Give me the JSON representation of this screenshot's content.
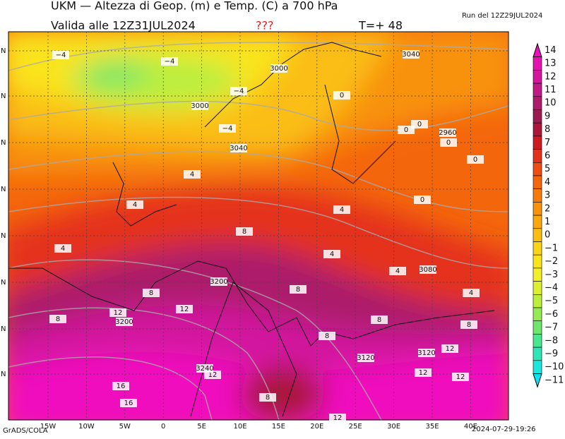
{
  "header": {
    "title": "UKM — Altezza di Geop. (m) e Temp. (C) a 700 hPa",
    "valid": "Valida alle 12Z31JUL2024",
    "note": "???",
    "step": "T=+ 48",
    "run": "Run del 12Z29JUL2024"
  },
  "map": {
    "lon_labels": [
      "15W",
      "10W",
      "5W",
      "0",
      "5E",
      "10E",
      "15E",
      "20E",
      "25E",
      "30E",
      "35E",
      "40E"
    ],
    "lat_labels": [
      "N",
      "N",
      "N",
      "N",
      "N",
      "N",
      "N",
      "N"
    ],
    "contour_labels": [
      "−4",
      "−4",
      "−4",
      "−4",
      "3000",
      "3000",
      "3040",
      "3040",
      "0",
      "0",
      "0",
      "0",
      "0",
      "0",
      "2960",
      "4",
      "4",
      "4",
      "4",
      "4",
      "4",
      "4",
      "8",
      "8",
      "8",
      "8",
      "8",
      "8",
      "8",
      "3200",
      "3200",
      "12",
      "12",
      "12",
      "12",
      "12",
      "12",
      "3080",
      "3120",
      "3120",
      "3240",
      "16",
      "16",
      "8",
      "12"
    ]
  },
  "colorbar": [
    {
      "label": "14",
      "color": "#f00fbe"
    },
    {
      "label": "13",
      "color": "#e414b0"
    },
    {
      "label": "12",
      "color": "#d2169e"
    },
    {
      "label": "11",
      "color": "#c01a86"
    },
    {
      "label": "10",
      "color": "#ac1c6a"
    },
    {
      "label": "9",
      "color": "#9a1c50"
    },
    {
      "label": "8",
      "color": "#ac163a"
    },
    {
      "label": "7",
      "color": "#cc1c22"
    },
    {
      "label": "6",
      "color": "#e4321a"
    },
    {
      "label": "5",
      "color": "#ee4e14"
    },
    {
      "label": "4",
      "color": "#f4660c"
    },
    {
      "label": "3",
      "color": "#f67c0a"
    },
    {
      "label": "2",
      "color": "#f8920a"
    },
    {
      "label": "1",
      "color": "#faa80c"
    },
    {
      "label": "0",
      "color": "#fabe12"
    },
    {
      "label": "−1",
      "color": "#fad218"
    },
    {
      "label": "−2",
      "color": "#fae41e"
    },
    {
      "label": "−3",
      "color": "#f2f028"
    },
    {
      "label": "−4",
      "color": "#dcf032"
    },
    {
      "label": "−5",
      "color": "#bcee40"
    },
    {
      "label": "−6",
      "color": "#96ea54"
    },
    {
      "label": "−7",
      "color": "#6ee66c"
    },
    {
      "label": "−8",
      "color": "#4ae690"
    },
    {
      "label": "−9",
      "color": "#30e6b6"
    },
    {
      "label": "−10",
      "color": "#1ee6da"
    },
    {
      "label": "−11",
      "color": "#0ae4f2"
    }
  ],
  "footer": {
    "left": "GrADS/COLA",
    "right": "2024-07-29-19:26"
  }
}
